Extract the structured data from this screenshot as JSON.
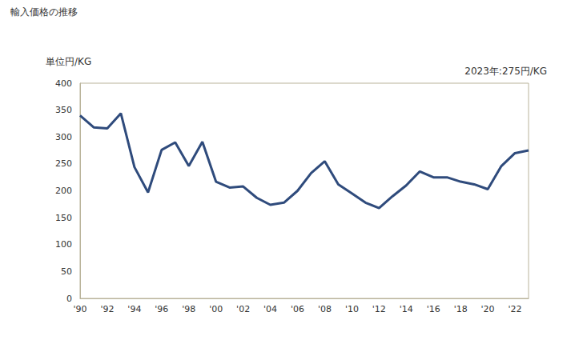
{
  "chart_data": {
    "type": "line",
    "title": "輸入価格の推移",
    "y_label": "単位円/KG",
    "annotation": "2023年:275円/KG",
    "categories": [
      "'90",
      null,
      "'92",
      null,
      "'94",
      null,
      "'96",
      null,
      "'98",
      null,
      "'00",
      null,
      "'02",
      null,
      "'04",
      null,
      "'06",
      null,
      "'08",
      null,
      "'10",
      null,
      "'12",
      null,
      "'14",
      null,
      "'16",
      null,
      "'18",
      null,
      "'20",
      null,
      "'22",
      null
    ],
    "values": [
      340,
      318,
      316,
      344,
      244,
      197,
      276,
      290,
      246,
      291,
      217,
      206,
      208,
      187,
      174,
      178,
      200,
      233,
      255,
      212,
      195,
      178,
      168,
      190,
      210,
      236,
      225,
      225,
      217,
      212,
      203,
      246,
      270,
      275
    ],
    "color": "#2f4b7c",
    "ylim": [
      0,
      400
    ],
    "yticks": [
      0,
      50,
      100,
      150,
      200,
      250,
      300,
      350,
      400
    ],
    "grid": false
  }
}
